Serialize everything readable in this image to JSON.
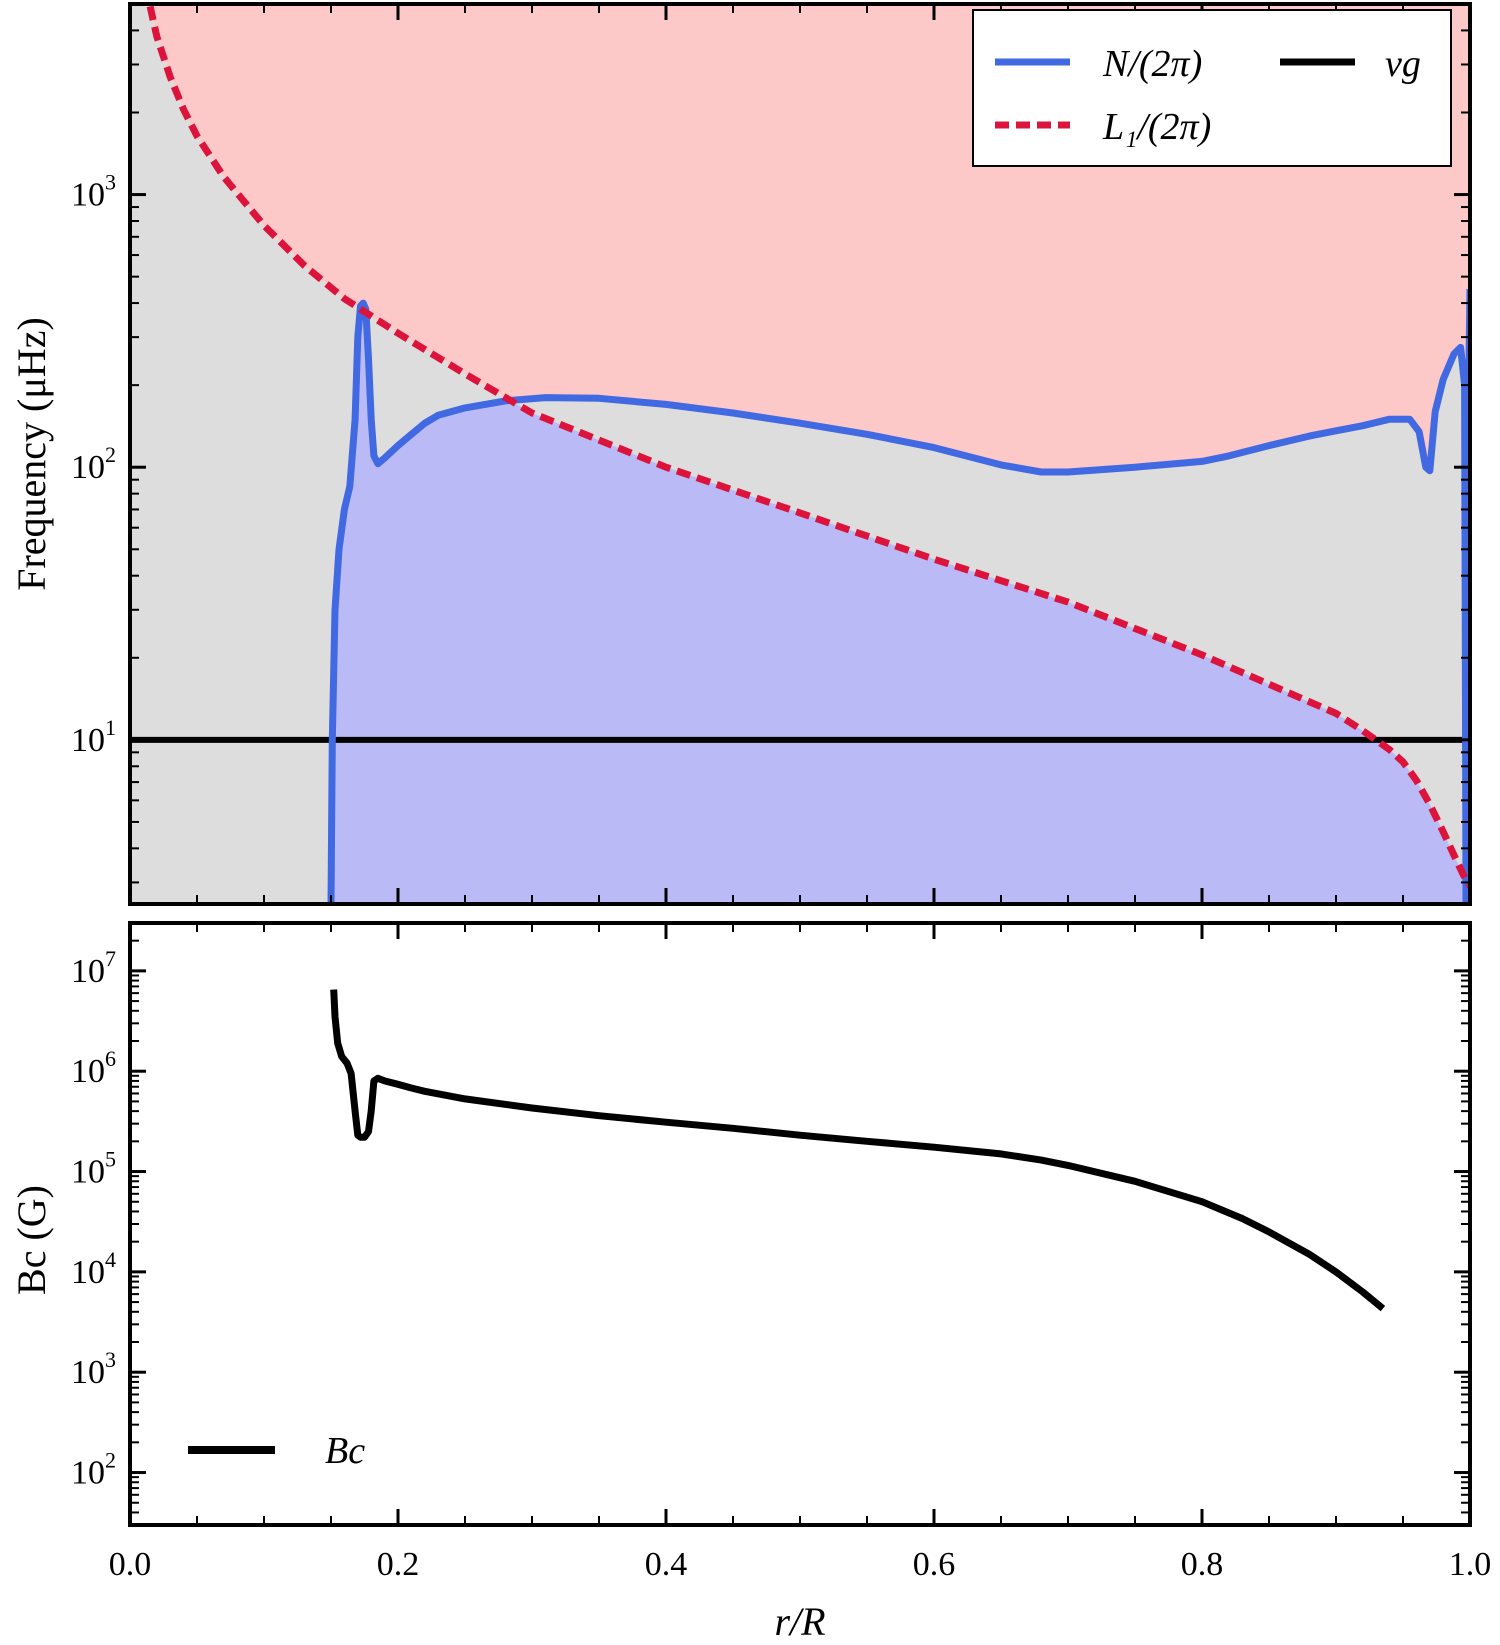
{
  "chart_data": [
    {
      "type": "line",
      "panel": "top",
      "ylabel": "Frequency (μHz)",
      "yscale": "log",
      "xlim": [
        0.0,
        1.0
      ],
      "ylim": [
        2.5,
        5000
      ],
      "grid": false,
      "legend_position": "top-right",
      "y_ticks": [
        {
          "base": "10",
          "exp": "1"
        },
        {
          "base": "10",
          "exp": "2"
        },
        {
          "base": "10",
          "exp": "3"
        }
      ],
      "fill_regions": [
        {
          "name": "above L1 and N",
          "color": "#fdc8c8"
        },
        {
          "name": "between",
          "color": "#dddddd"
        },
        {
          "name": "below L1 and N",
          "color": "#babaf7"
        }
      ],
      "series": [
        {
          "name": "N/(2π)",
          "color": "#4169e1",
          "style": "solid",
          "x": [
            0.15,
            0.151,
            0.153,
            0.156,
            0.16,
            0.164,
            0.168,
            0.17,
            0.172,
            0.174,
            0.176,
            0.178,
            0.18,
            0.182,
            0.185,
            0.19,
            0.2,
            0.21,
            0.22,
            0.23,
            0.25,
            0.28,
            0.31,
            0.35,
            0.4,
            0.45,
            0.5,
            0.55,
            0.6,
            0.65,
            0.68,
            0.7,
            0.75,
            0.8,
            0.82,
            0.85,
            0.88,
            0.9,
            0.92,
            0.94,
            0.955,
            0.962,
            0.967,
            0.97,
            0.974,
            0.98,
            0.988,
            0.993,
            0.996,
            0.997,
            0.998,
            0.999,
            1.0
          ],
          "y": [
            2.5,
            10,
            30,
            50,
            70,
            85,
            150,
            300,
            390,
            400,
            380,
            250,
            150,
            110,
            103,
            108,
            120,
            132,
            145,
            155,
            165,
            175,
            180,
            179,
            170,
            158,
            145,
            132,
            118,
            102,
            96,
            96,
            100,
            105,
            110,
            120,
            130,
            136,
            142,
            150,
            150,
            135,
            100,
            97,
            160,
            210,
            260,
            275,
            200,
            2.5,
            2.5,
            200,
            450
          ]
        },
        {
          "name": "L₁/(2π)",
          "color": "#dc143c",
          "style": "dashed",
          "x": [
            0.015,
            0.02,
            0.03,
            0.04,
            0.05,
            0.07,
            0.1,
            0.13,
            0.16,
            0.2,
            0.25,
            0.3,
            0.4,
            0.5,
            0.6,
            0.7,
            0.8,
            0.85,
            0.9,
            0.92,
            0.94,
            0.95,
            0.96,
            0.97,
            0.98,
            0.99,
            0.995,
            1.0
          ],
          "y": [
            4900,
            3800,
            2700,
            2050,
            1640,
            1160,
            770,
            550,
            415,
            310,
            220,
            158,
            100,
            68,
            46,
            32,
            20.5,
            16,
            12.5,
            10.8,
            9.2,
            8.3,
            7.1,
            5.8,
            4.6,
            3.6,
            3.2,
            2.9
          ]
        },
        {
          "name": "νg",
          "color": "#000000",
          "style": "solid",
          "x": [
            0.0,
            1.0
          ],
          "y": [
            10,
            10
          ]
        }
      ],
      "legend": [
        {
          "label": "N/(2π)",
          "color": "#4169e1",
          "style": "solid"
        },
        {
          "label": "νg",
          "color": "#000000",
          "style": "solid"
        },
        {
          "label": "L₁/(2π)",
          "color": "#dc143c",
          "style": "dashed"
        }
      ]
    },
    {
      "type": "line",
      "panel": "bottom",
      "xlabel": "r/R",
      "ylabel": "Bc (G)",
      "yscale": "log",
      "xlim": [
        0.0,
        1.0
      ],
      "ylim": [
        30,
        30000000
      ],
      "grid": false,
      "legend_position": "bottom-left",
      "x_ticks": [
        "0.0",
        "0.2",
        "0.4",
        "0.6",
        "0.8",
        "1.0"
      ],
      "y_ticks": [
        {
          "base": "10",
          "exp": "2"
        },
        {
          "base": "10",
          "exp": "3"
        },
        {
          "base": "10",
          "exp": "4"
        },
        {
          "base": "10",
          "exp": "5"
        },
        {
          "base": "10",
          "exp": "6"
        },
        {
          "base": "10",
          "exp": "7"
        }
      ],
      "series": [
        {
          "name": "Bc",
          "color": "#000000",
          "style": "solid",
          "x": [
            0.152,
            0.153,
            0.155,
            0.158,
            0.162,
            0.165,
            0.168,
            0.17,
            0.172,
            0.175,
            0.178,
            0.18,
            0.182,
            0.185,
            0.19,
            0.2,
            0.21,
            0.22,
            0.25,
            0.3,
            0.35,
            0.4,
            0.45,
            0.5,
            0.55,
            0.6,
            0.65,
            0.68,
            0.7,
            0.75,
            0.8,
            0.83,
            0.85,
            0.88,
            0.9,
            0.92,
            0.935
          ],
          "y": [
            6500000,
            3500000,
            1900000,
            1400000,
            1200000,
            950000,
            400000,
            230000,
            220000,
            220000,
            250000,
            400000,
            800000,
            850000,
            800000,
            740000,
            680000,
            630000,
            530000,
            430000,
            360000,
            310000,
            270000,
            230000,
            200000,
            175000,
            150000,
            130000,
            115000,
            80000,
            50000,
            34000,
            25000,
            15000,
            10000,
            6300,
            4300
          ]
        }
      ],
      "legend": [
        {
          "label": "Bc",
          "color": "#000000",
          "style": "solid"
        }
      ]
    }
  ]
}
